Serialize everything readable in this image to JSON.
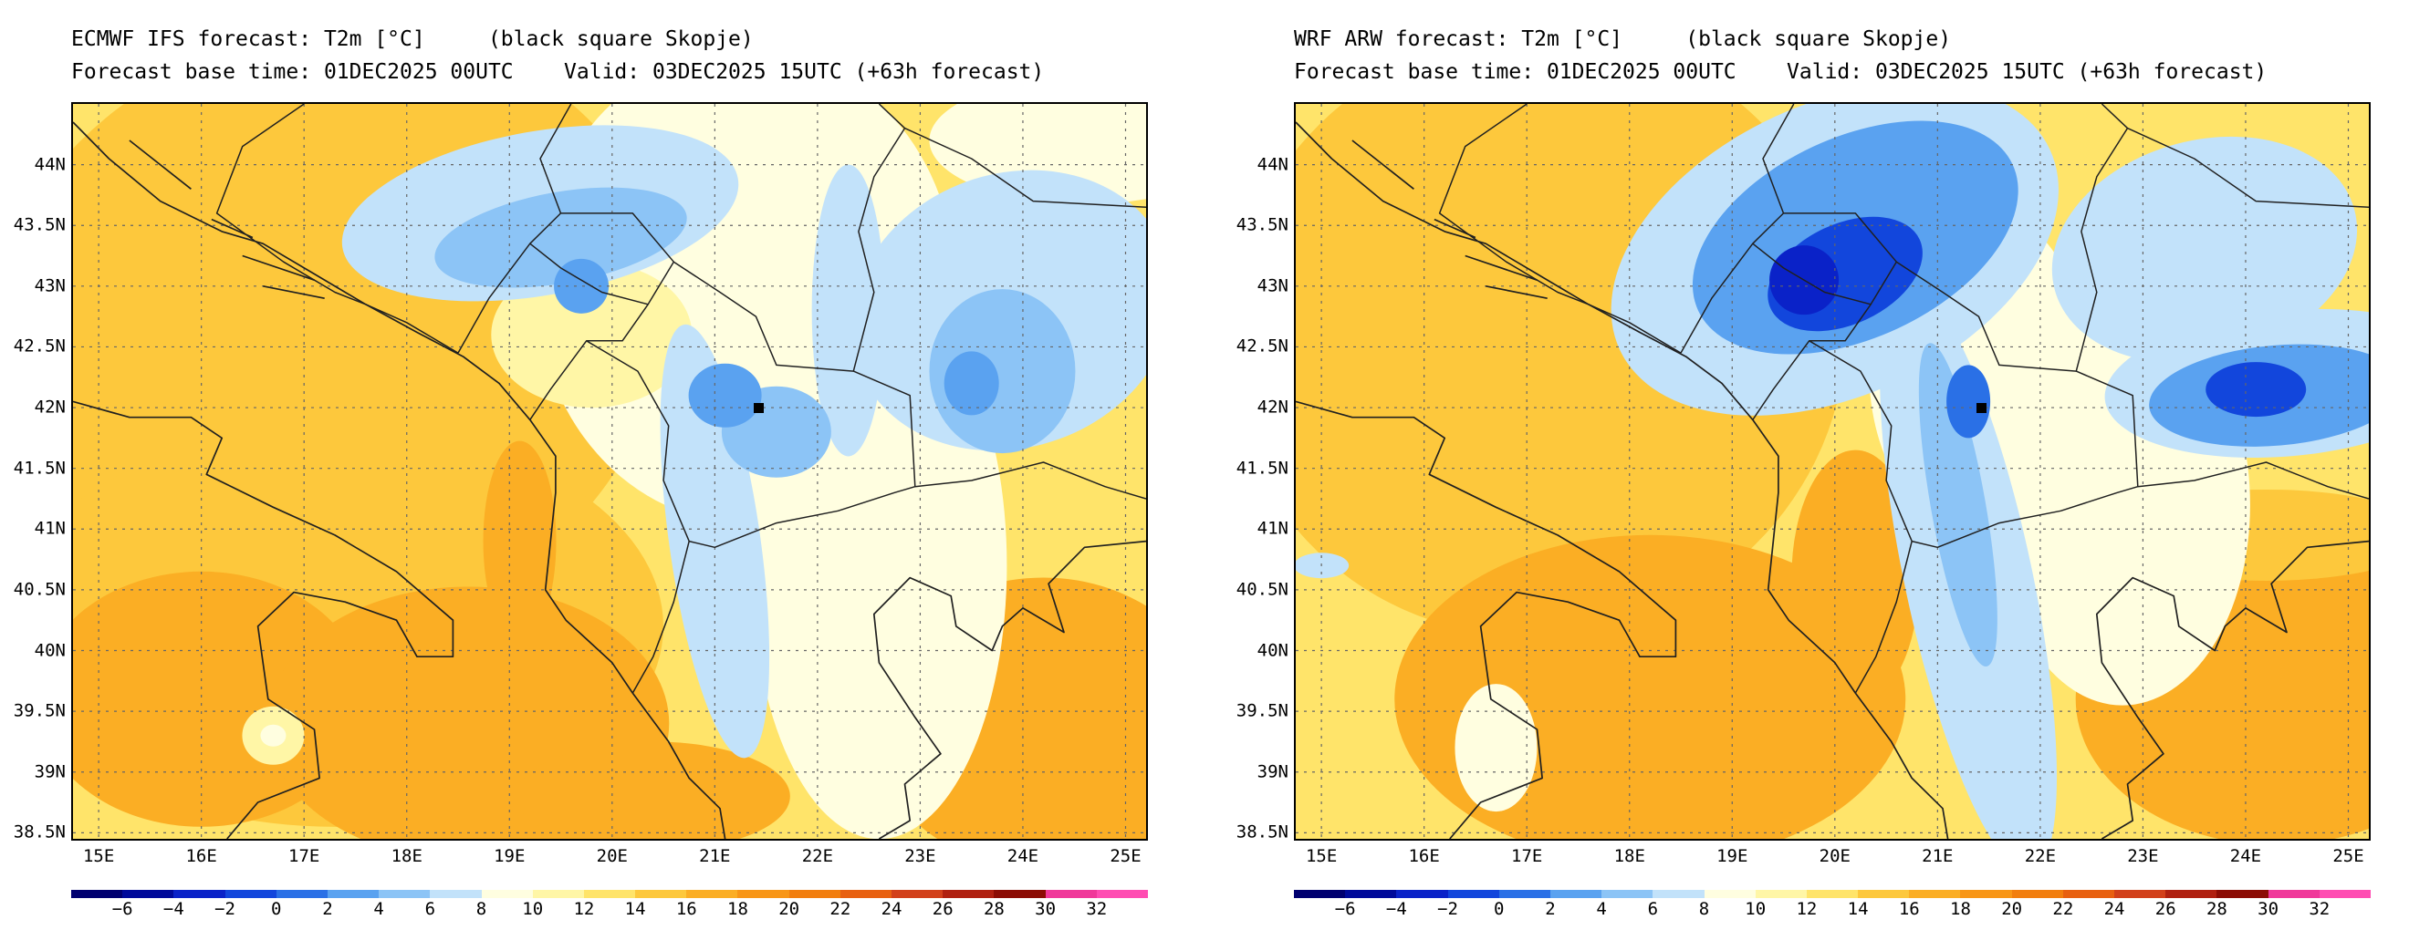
{
  "panels": [
    {
      "id": "ecmwf",
      "title_line1": "ECMWF IFS forecast: T2m [°C]     (black square Skopje)",
      "title_line2": "Forecast base time: 01DEC2025 00UTC    Valid: 03DEC2025 15UTC (+63h forecast)"
    },
    {
      "id": "wrf",
      "title_line1": "WRF ARW forecast: T2m [°C]     (black square Skopje)",
      "title_line2": "Forecast base time: 01DEC2025 00UTC    Valid: 03DEC2025 15UTC (+63h forecast)"
    }
  ],
  "map": {
    "lon_range": [
      14.75,
      25.2
    ],
    "lat_range": [
      38.45,
      44.5
    ],
    "lat_ticks": [
      "44N",
      "43.5N",
      "43N",
      "42.5N",
      "42N",
      "41.5N",
      "41N",
      "40.5N",
      "40N",
      "39.5N",
      "39N",
      "38.5N"
    ],
    "lat_values": [
      44,
      43.5,
      43,
      42.5,
      42,
      41.5,
      41,
      40.5,
      40,
      39.5,
      39,
      38.5
    ],
    "lon_ticks": [
      "15E",
      "16E",
      "17E",
      "18E",
      "19E",
      "20E",
      "21E",
      "22E",
      "23E",
      "24E",
      "25E"
    ],
    "lon_values": [
      15,
      16,
      17,
      18,
      19,
      20,
      21,
      22,
      23,
      24,
      25
    ],
    "station": {
      "lon": 21.43,
      "lat": 42.0
    },
    "grid": "dotted"
  },
  "colorbar": {
    "labels": [
      "−6",
      "−4",
      "−2",
      "0",
      "2",
      "4",
      "6",
      "8",
      "10",
      "12",
      "14",
      "16",
      "18",
      "20",
      "22",
      "24",
      "26",
      "28",
      "30",
      "32"
    ],
    "colors": [
      "#000070",
      "#000a9a",
      "#0a22c8",
      "#1246dc",
      "#2a70e6",
      "#5aa2f0",
      "#8cc4f6",
      "#c2e2fa",
      "#fffee0",
      "#fff6a6",
      "#ffe46a",
      "#fdc83c",
      "#fbae24",
      "#f89616",
      "#f27e0e",
      "#e86010",
      "#d2401a",
      "#b02010",
      "#8c0c04",
      "#f0389a",
      "#ff4cb2"
    ]
  }
}
